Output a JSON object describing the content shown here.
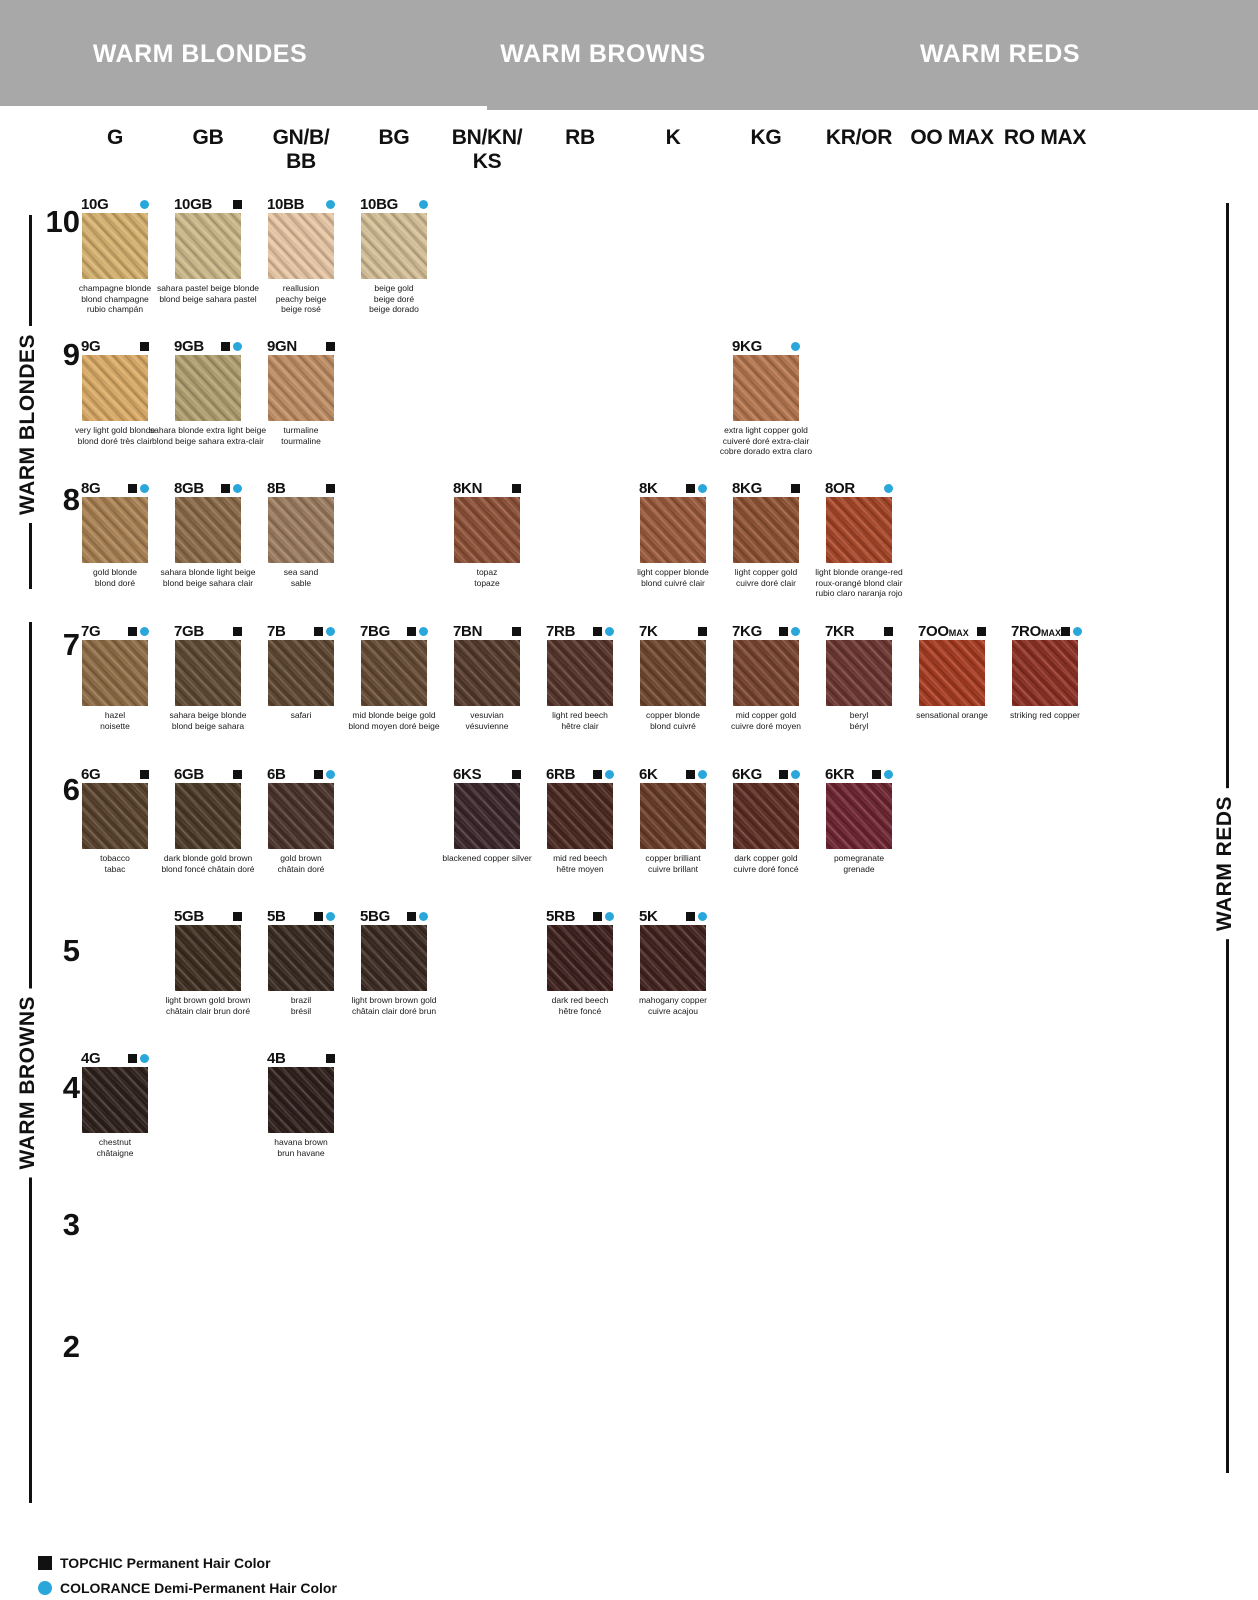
{
  "header": {
    "bg_color": "#a8a8a8",
    "sections": [
      {
        "label": "WARM BLONDES"
      },
      {
        "label": "WARM BROWNS"
      },
      {
        "label": "WARM REDS"
      }
    ]
  },
  "columns": [
    {
      "line1": "G",
      "line2": ""
    },
    {
      "line1": "GB",
      "line2": ""
    },
    {
      "line1": "GN/B/",
      "line2": "BB"
    },
    {
      "line1": "BG",
      "line2": ""
    },
    {
      "line1": "BN/KN/",
      "line2": "KS"
    },
    {
      "line1": "RB",
      "line2": ""
    },
    {
      "line1": "K",
      "line2": ""
    },
    {
      "line1": "KG",
      "line2": ""
    },
    {
      "line1": "KR/OR",
      "line2": ""
    },
    {
      "line1": "OO MAX",
      "line2": ""
    },
    {
      "line1": "RO MAX",
      "line2": ""
    }
  ],
  "rows": [
    "10",
    "9",
    "8",
    "7",
    "6",
    "5",
    "4",
    "3",
    "2"
  ],
  "side_labels": {
    "left_top": "WARM BLONDES",
    "left_bottom": "WARM BROWNS",
    "right": "WARM REDS"
  },
  "colors": {
    "accent_blue": "#2aa7da",
    "marker_black": "#111111",
    "banner_gray": "#a8a8a8"
  },
  "legend": [
    {
      "symbol": "square",
      "label": "TOPCHIC Permanent Hair Color"
    },
    {
      "symbol": "circle",
      "label": "COLORANCE Demi-Permanent Hair Color"
    }
  ],
  "swatches": [
    {
      "code": "10G",
      "suffix": "",
      "row": 0,
      "col": 0,
      "topchic": false,
      "colorance": true,
      "color": "#d7b26e",
      "names": [
        "champagne blonde",
        "blond champagne",
        "rubio champán"
      ]
    },
    {
      "code": "10GB",
      "suffix": "",
      "row": 0,
      "col": 1,
      "topchic": true,
      "colorance": false,
      "color": "#cdb98a",
      "names": [
        "sahara pastel beige blonde",
        "blond beige sahara pastel"
      ]
    },
    {
      "code": "10BB",
      "suffix": "",
      "row": 0,
      "col": 2,
      "topchic": false,
      "colorance": true,
      "color": "#e9c7a4",
      "names": [
        "reallusion",
        "peachy beige",
        "beige rosé"
      ]
    },
    {
      "code": "10BG",
      "suffix": "",
      "row": 0,
      "col": 3,
      "topchic": false,
      "colorance": true,
      "color": "#d6c097",
      "names": [
        "beige gold",
        "beige doré",
        "beige dorado"
      ]
    },
    {
      "code": "9G",
      "suffix": "",
      "row": 1,
      "col": 0,
      "topchic": true,
      "colorance": false,
      "color": "#dcab66",
      "names": [
        "very light gold blonde",
        "blond doré très clair"
      ]
    },
    {
      "code": "9GB",
      "suffix": "",
      "row": 1,
      "col": 1,
      "topchic": true,
      "colorance": true,
      "color": "#b3a071",
      "names": [
        "sahara blonde extra light beige",
        "blond beige sahara extra-clair"
      ]
    },
    {
      "code": "9GN",
      "suffix": "",
      "row": 1,
      "col": 2,
      "topchic": true,
      "colorance": false,
      "color": "#c08d63",
      "names": [
        "turmaline",
        "tourmaline"
      ]
    },
    {
      "code": "9KG",
      "suffix": "",
      "row": 1,
      "col": 7,
      "topchic": false,
      "colorance": true,
      "color": "#b5764e",
      "names": [
        "extra light copper gold",
        "cuiveré doré extra-clair",
        "cobre dorado extra claro"
      ]
    },
    {
      "code": "8G",
      "suffix": "",
      "row": 2,
      "col": 0,
      "topchic": true,
      "colorance": true,
      "color": "#aa8152",
      "names": [
        "gold blonde",
        "blond doré"
      ]
    },
    {
      "code": "8GB",
      "suffix": "",
      "row": 2,
      "col": 1,
      "topchic": true,
      "colorance": true,
      "color": "#8a6a47",
      "names": [
        "sahara blonde light beige",
        "blond beige sahara clair"
      ]
    },
    {
      "code": "8B",
      "suffix": "",
      "row": 2,
      "col": 2,
      "topchic": true,
      "colorance": false,
      "color": "#9c7c5f",
      "names": [
        "sea sand",
        "sable"
      ]
    },
    {
      "code": "8KN",
      "suffix": "",
      "row": 2,
      "col": 4,
      "topchic": true,
      "colorance": false,
      "color": "#8d5036",
      "names": [
        "topaz",
        "topaze"
      ]
    },
    {
      "code": "8K",
      "suffix": "",
      "row": 2,
      "col": 6,
      "topchic": true,
      "colorance": true,
      "color": "#9a593b",
      "names": [
        "light copper blonde",
        "blond cuivré clair"
      ]
    },
    {
      "code": "8KG",
      "suffix": "",
      "row": 2,
      "col": 7,
      "topchic": true,
      "colorance": false,
      "color": "#8f5233",
      "names": [
        "light copper gold",
        "cuivre doré clair"
      ]
    },
    {
      "code": "8OR",
      "suffix": "",
      "row": 2,
      "col": 8,
      "topchic": false,
      "colorance": true,
      "color": "#a74527",
      "names": [
        "light blonde orange-red",
        "roux-orangé blond clair",
        "rubio claro naranja rojo"
      ]
    },
    {
      "code": "7G",
      "suffix": "",
      "row": 3,
      "col": 0,
      "topchic": true,
      "colorance": true,
      "color": "#8e6c45",
      "names": [
        "hazel",
        "noisette"
      ]
    },
    {
      "code": "7GB",
      "suffix": "",
      "row": 3,
      "col": 1,
      "topchic": true,
      "colorance": false,
      "color": "#5f4832",
      "names": [
        "sahara beige blonde",
        "blond beige sahara"
      ]
    },
    {
      "code": "7B",
      "suffix": "",
      "row": 3,
      "col": 2,
      "topchic": true,
      "colorance": true,
      "color": "#5e4631",
      "names": [
        "safari"
      ]
    },
    {
      "code": "7BG",
      "suffix": "",
      "row": 3,
      "col": 3,
      "topchic": true,
      "colorance": true,
      "color": "#654a33",
      "names": [
        "mid blonde beige gold",
        "blond moyen doré beige"
      ]
    },
    {
      "code": "7BN",
      "suffix": "",
      "row": 3,
      "col": 4,
      "topchic": true,
      "colorance": false,
      "color": "#55392c",
      "names": [
        "vesuvian",
        "vésuvienne"
      ]
    },
    {
      "code": "7RB",
      "suffix": "",
      "row": 3,
      "col": 5,
      "topchic": true,
      "colorance": true,
      "color": "#55332a",
      "names": [
        "light red beech",
        "hêtre clair"
      ]
    },
    {
      "code": "7K",
      "suffix": "",
      "row": 3,
      "col": 6,
      "topchic": true,
      "colorance": false,
      "color": "#6f452e",
      "names": [
        "copper blonde",
        "blond cuivré"
      ]
    },
    {
      "code": "7KG",
      "suffix": "",
      "row": 3,
      "col": 7,
      "topchic": true,
      "colorance": true,
      "color": "#77442d",
      "names": [
        "mid copper gold",
        "cuivre doré moyen"
      ]
    },
    {
      "code": "7KR",
      "suffix": "",
      "row": 3,
      "col": 8,
      "topchic": true,
      "colorance": false,
      "color": "#6c3630",
      "names": [
        "beryl",
        "béryl"
      ]
    },
    {
      "code": "7OO",
      "suffix": "MAX",
      "row": 3,
      "col": 9,
      "topchic": true,
      "colorance": false,
      "color": "#a73a20",
      "names": [
        "sensational orange"
      ]
    },
    {
      "code": "7RO",
      "suffix": "MAX",
      "row": 3,
      "col": 10,
      "topchic": true,
      "colorance": true,
      "color": "#8d2f22",
      "names": [
        "striking red copper"
      ]
    },
    {
      "code": "6G",
      "suffix": "",
      "row": 4,
      "col": 0,
      "topchic": true,
      "colorance": false,
      "color": "#59422c",
      "names": [
        "tobacco",
        "tabac"
      ]
    },
    {
      "code": "6GB",
      "suffix": "",
      "row": 4,
      "col": 1,
      "topchic": true,
      "colorance": false,
      "color": "#4b3a26",
      "names": [
        "dark blonde gold brown",
        "blond foncé châtain doré"
      ]
    },
    {
      "code": "6B",
      "suffix": "",
      "row": 4,
      "col": 2,
      "topchic": true,
      "colorance": true,
      "color": "#4a312a",
      "names": [
        "gold brown",
        "châtain doré"
      ]
    },
    {
      "code": "6KS",
      "suffix": "",
      "row": 4,
      "col": 4,
      "topchic": true,
      "colorance": false,
      "color": "#3a262a",
      "names": [
        "blackened copper silver"
      ]
    },
    {
      "code": "6RB",
      "suffix": "",
      "row": 4,
      "col": 5,
      "topchic": true,
      "colorance": true,
      "color": "#4a2820",
      "names": [
        "mid red beech",
        "hêtre moyen"
      ]
    },
    {
      "code": "6K",
      "suffix": "",
      "row": 4,
      "col": 6,
      "topchic": true,
      "colorance": true,
      "color": "#6a3c28",
      "names": [
        "copper brilliant",
        "cuivre brillant"
      ]
    },
    {
      "code": "6KG",
      "suffix": "",
      "row": 4,
      "col": 7,
      "topchic": true,
      "colorance": true,
      "color": "#5d2d22",
      "names": [
        "dark copper gold",
        "cuivre doré foncé"
      ]
    },
    {
      "code": "6KR",
      "suffix": "",
      "row": 4,
      "col": 8,
      "topchic": true,
      "colorance": true,
      "color": "#6e2431",
      "names": [
        "pomegranate",
        "grenade"
      ]
    },
    {
      "code": "5GB",
      "suffix": "",
      "row": 5,
      "col": 1,
      "topchic": true,
      "colorance": false,
      "color": "#3d2e20",
      "names": [
        "light brown gold brown",
        "châtain clair brun doré"
      ]
    },
    {
      "code": "5B",
      "suffix": "",
      "row": 5,
      "col": 2,
      "topchic": true,
      "colorance": true,
      "color": "#382a21",
      "names": [
        "brazil",
        "brésil"
      ]
    },
    {
      "code": "5BG",
      "suffix": "",
      "row": 5,
      "col": 3,
      "topchic": true,
      "colorance": true,
      "color": "#3b2b22",
      "names": [
        "light brown brown gold",
        "châtain clair doré brun"
      ]
    },
    {
      "code": "5RB",
      "suffix": "",
      "row": 5,
      "col": 5,
      "topchic": true,
      "colorance": true,
      "color": "#3d201d",
      "names": [
        "dark red beech",
        "hêtre foncé"
      ]
    },
    {
      "code": "5K",
      "suffix": "",
      "row": 5,
      "col": 6,
      "topchic": true,
      "colorance": true,
      "color": "#42221e",
      "names": [
        "mahogany copper",
        "cuivre acajou"
      ]
    },
    {
      "code": "4G",
      "suffix": "",
      "row": 6,
      "col": 0,
      "topchic": true,
      "colorance": true,
      "color": "#2f211c",
      "names": [
        "chestnut",
        "châtaigne"
      ]
    },
    {
      "code": "4B",
      "suffix": "",
      "row": 6,
      "col": 2,
      "topchic": true,
      "colorance": false,
      "color": "#2e1f1b",
      "names": [
        "havana brown",
        "brun havane"
      ]
    }
  ]
}
